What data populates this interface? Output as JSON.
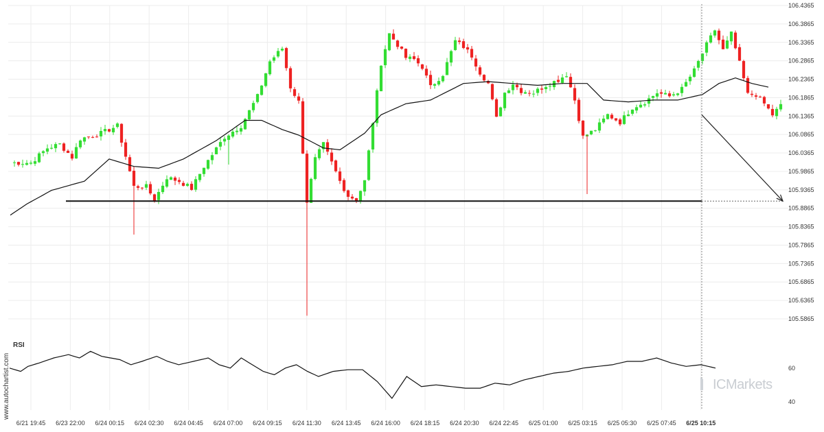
{
  "chart": {
    "rsi_label": "RSI",
    "credit": "www.autochartist.com",
    "brand": "ICMarkets",
    "colors": {
      "up": "#33dd33",
      "down": "#ee2222",
      "ma_line": "#111111",
      "support": "#111111",
      "grid": "#ececec",
      "projection": "#222222",
      "axis_text": "#333333",
      "brand": "#c9cdd2"
    }
  },
  "chart_data": [
    {
      "type": "candlestick",
      "title": "",
      "y_axis_side": "right",
      "ylim": [
        105.5865,
        106.4365
      ],
      "y_ticks": [
        "106.4365",
        "106.3865",
        "106.3365",
        "106.2865",
        "106.2365",
        "106.1865",
        "106.1365",
        "106.0865",
        "106.0365",
        "105.9865",
        "105.9365",
        "105.8865",
        "105.8365",
        "105.7865",
        "105.7365",
        "105.6865",
        "105.6365",
        "105.5865"
      ],
      "x_ticks": [
        "6/21 19:45",
        "6/23 22:00",
        "6/24 00:15",
        "6/24 02:30",
        "6/24 04:45",
        "6/24 07:00",
        "6/24 09:15",
        "6/24 11:30",
        "6/24 13:45",
        "6/24 16:00",
        "6/24 18:15",
        "6/24 20:30",
        "6/24 22:45",
        "6/25 01:00",
        "6/25 03:15",
        "6/25 05:30",
        "6/25 07:45",
        "6/25 10:15"
      ],
      "x_tick_highlight": "6/25 10:15",
      "support_level": 105.906,
      "projected_target": 105.906,
      "moving_average_anchors": [
        [
          0,
          105.868
        ],
        [
          4,
          105.898
        ],
        [
          10,
          105.935
        ],
        [
          18,
          105.96
        ],
        [
          24,
          106.02
        ],
        [
          30,
          106.0
        ],
        [
          36,
          105.995
        ],
        [
          42,
          106.02
        ],
        [
          50,
          106.07
        ],
        [
          57,
          106.125
        ],
        [
          61,
          106.125
        ],
        [
          66,
          106.1
        ],
        [
          70,
          106.085
        ],
        [
          76,
          106.05
        ],
        [
          80,
          106.045
        ],
        [
          86,
          106.09
        ],
        [
          90,
          106.14
        ],
        [
          96,
          106.17
        ],
        [
          102,
          106.18
        ],
        [
          110,
          106.225
        ],
        [
          116,
          106.23
        ],
        [
          122,
          106.225
        ],
        [
          128,
          106.22
        ],
        [
          134,
          106.225
        ],
        [
          140,
          106.225
        ],
        [
          144,
          106.18
        ],
        [
          150,
          106.175
        ],
        [
          156,
          106.18
        ],
        [
          162,
          106.18
        ],
        [
          168,
          106.195
        ],
        [
          172,
          106.225
        ],
        [
          176,
          106.24
        ],
        [
          180,
          106.225
        ],
        [
          184,
          106.215
        ]
      ],
      "candles_note_anchors": "close prices by bar index",
      "close_anchors": [
        [
          0,
          106.01
        ],
        [
          5,
          106.01
        ],
        [
          9,
          106.05
        ],
        [
          12,
          106.06
        ],
        [
          15,
          106.025
        ],
        [
          17,
          106.075
        ],
        [
          22,
          106.09
        ],
        [
          26,
          106.11
        ],
        [
          30,
          105.945
        ],
        [
          33,
          105.945
        ],
        [
          35,
          105.91
        ],
        [
          38,
          105.97
        ],
        [
          41,
          105.96
        ],
        [
          44,
          105.94
        ],
        [
          47,
          106.0
        ],
        [
          52,
          106.08
        ],
        [
          56,
          106.11
        ],
        [
          60,
          106.19
        ],
        [
          63,
          106.285
        ],
        [
          66,
          106.32
        ],
        [
          68,
          106.215
        ],
        [
          70,
          106.175
        ],
        [
          72,
          105.905
        ],
        [
          74,
          106.02
        ],
        [
          76,
          106.06
        ],
        [
          78,
          106.01
        ],
        [
          80,
          105.96
        ],
        [
          82,
          105.92
        ],
        [
          84,
          105.91
        ],
        [
          86,
          105.96
        ],
        [
          88,
          106.12
        ],
        [
          90,
          106.28
        ],
        [
          92,
          106.36
        ],
        [
          94,
          106.33
        ],
        [
          96,
          106.295
        ],
        [
          98,
          106.29
        ],
        [
          100,
          106.27
        ],
        [
          102,
          106.215
        ],
        [
          105,
          106.25
        ],
        [
          108,
          106.34
        ],
        [
          110,
          106.325
        ],
        [
          112,
          106.3
        ],
        [
          114,
          106.255
        ],
        [
          116,
          106.225
        ],
        [
          118,
          106.13
        ],
        [
          120,
          106.2
        ],
        [
          122,
          106.225
        ],
        [
          124,
          106.205
        ],
        [
          127,
          106.2
        ],
        [
          130,
          106.22
        ],
        [
          133,
          106.235
        ],
        [
          135,
          106.25
        ],
        [
          137,
          106.18
        ],
        [
          139,
          106.08
        ],
        [
          142,
          106.1
        ],
        [
          145,
          106.14
        ],
        [
          148,
          106.12
        ],
        [
          151,
          106.16
        ],
        [
          154,
          106.175
        ],
        [
          157,
          106.2
        ],
        [
          160,
          106.19
        ],
        [
          163,
          106.21
        ],
        [
          166,
          106.26
        ],
        [
          169,
          106.33
        ],
        [
          171,
          106.37
        ],
        [
          173,
          106.315
        ],
        [
          175,
          106.36
        ],
        [
          177,
          106.28
        ],
        [
          179,
          106.195
        ],
        [
          181,
          106.195
        ],
        [
          183,
          106.17
        ],
        [
          185,
          106.14
        ],
        [
          187,
          106.165
        ]
      ]
    },
    {
      "type": "line",
      "title": "RSI",
      "y_ticks": [
        "60",
        "40"
      ],
      "ylim": [
        35,
        75
      ],
      "series": [
        {
          "values_anchors": [
            [
              0,
              60
            ],
            [
              3,
              58
            ],
            [
              5,
              61
            ],
            [
              8,
              63
            ],
            [
              12,
              66
            ],
            [
              16,
              68
            ],
            [
              19,
              66
            ],
            [
              22,
              70
            ],
            [
              25,
              67
            ],
            [
              30,
              65
            ],
            [
              33,
              62
            ],
            [
              36,
              64
            ],
            [
              40,
              67
            ],
            [
              43,
              64
            ],
            [
              46,
              62
            ],
            [
              50,
              64
            ],
            [
              54,
              66
            ],
            [
              57,
              62
            ],
            [
              60,
              60
            ],
            [
              63,
              66
            ],
            [
              66,
              62
            ],
            [
              69,
              58
            ],
            [
              72,
              56
            ],
            [
              75,
              60
            ],
            [
              78,
              62
            ],
            [
              81,
              58
            ],
            [
              84,
              55
            ],
            [
              88,
              58
            ],
            [
              92,
              59
            ],
            [
              96,
              59
            ],
            [
              100,
              52
            ],
            [
              104,
              42
            ],
            [
              108,
              55
            ],
            [
              112,
              49
            ],
            [
              116,
              50
            ],
            [
              120,
              49
            ],
            [
              124,
              48
            ],
            [
              128,
              48
            ],
            [
              132,
              51
            ],
            [
              136,
              50
            ],
            [
              140,
              53
            ],
            [
              144,
              55
            ],
            [
              148,
              57
            ],
            [
              152,
              58
            ],
            [
              156,
              60
            ],
            [
              160,
              61
            ],
            [
              164,
              62
            ],
            [
              168,
              64
            ],
            [
              172,
              64
            ],
            [
              176,
              66
            ],
            [
              180,
              63
            ],
            [
              184,
              61
            ],
            [
              188,
              62
            ],
            [
              192,
              60
            ]
          ]
        }
      ]
    }
  ]
}
